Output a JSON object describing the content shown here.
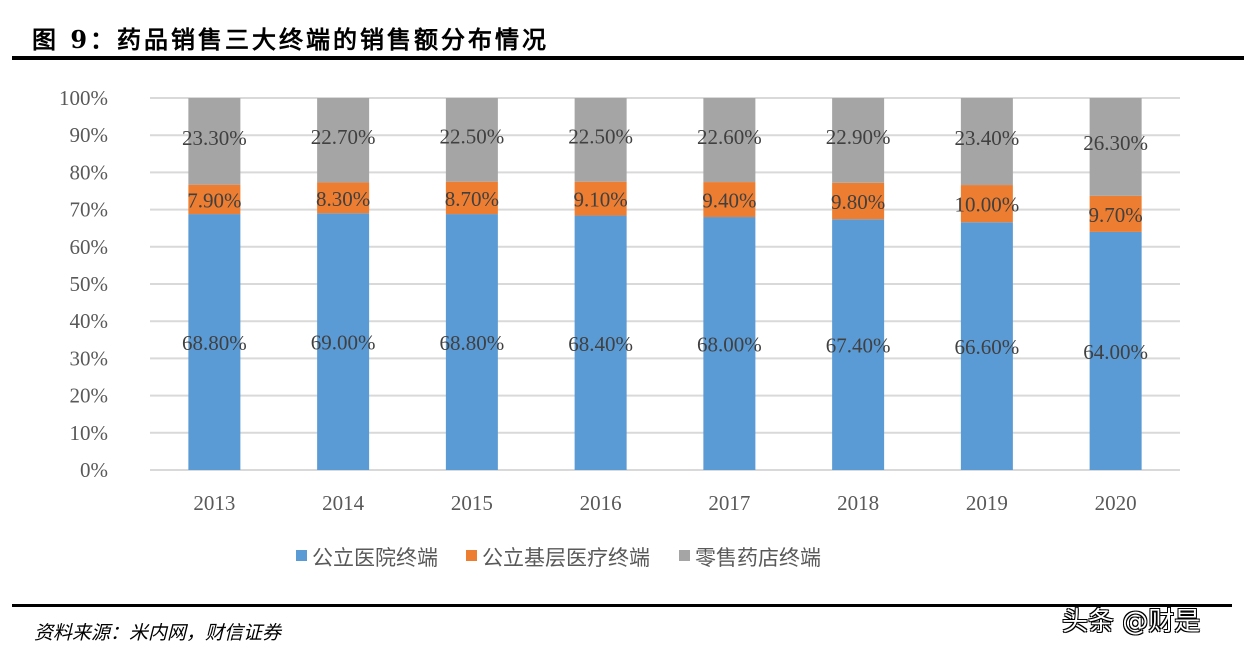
{
  "title": "图 9：药品销售三大终端的销售额分布情况",
  "source": "资料来源：米内网，财信证券",
  "watermark": "头条 @财是",
  "chart_data": {
    "type": "bar",
    "stacked": true,
    "categories": [
      "2013",
      "2014",
      "2015",
      "2016",
      "2017",
      "2018",
      "2019",
      "2020"
    ],
    "series": [
      {
        "name": "公立医院终端",
        "color": "#5B9BD5",
        "values": [
          68.8,
          69.0,
          68.8,
          68.4,
          68.0,
          67.4,
          66.6,
          64.0
        ],
        "labels": [
          "68.80%",
          "69.00%",
          "68.80%",
          "68.40%",
          "68.00%",
          "67.40%",
          "66.60%",
          "64.00%"
        ]
      },
      {
        "name": "公立基层医疗终端",
        "color": "#ED7D31",
        "values": [
          7.9,
          8.3,
          8.7,
          9.1,
          9.4,
          9.8,
          10.0,
          9.7
        ],
        "labels": [
          "7.90%",
          "8.30%",
          "8.70%",
          "9.10%",
          "9.40%",
          "9.80%",
          "10.00%",
          "9.70%"
        ]
      },
      {
        "name": "零售药店终端",
        "color": "#A5A5A5",
        "values": [
          23.3,
          22.7,
          22.5,
          22.5,
          22.6,
          22.9,
          23.4,
          26.3
        ],
        "labels": [
          "23.30%",
          "22.70%",
          "22.50%",
          "22.50%",
          "22.60%",
          "22.90%",
          "23.40%",
          "26.30%"
        ]
      }
    ],
    "yticks": [
      "0%",
      "10%",
      "20%",
      "30%",
      "40%",
      "50%",
      "60%",
      "70%",
      "80%",
      "90%",
      "100%"
    ],
    "ylim": [
      0,
      100
    ],
    "grid": true,
    "legend": "bottom"
  }
}
